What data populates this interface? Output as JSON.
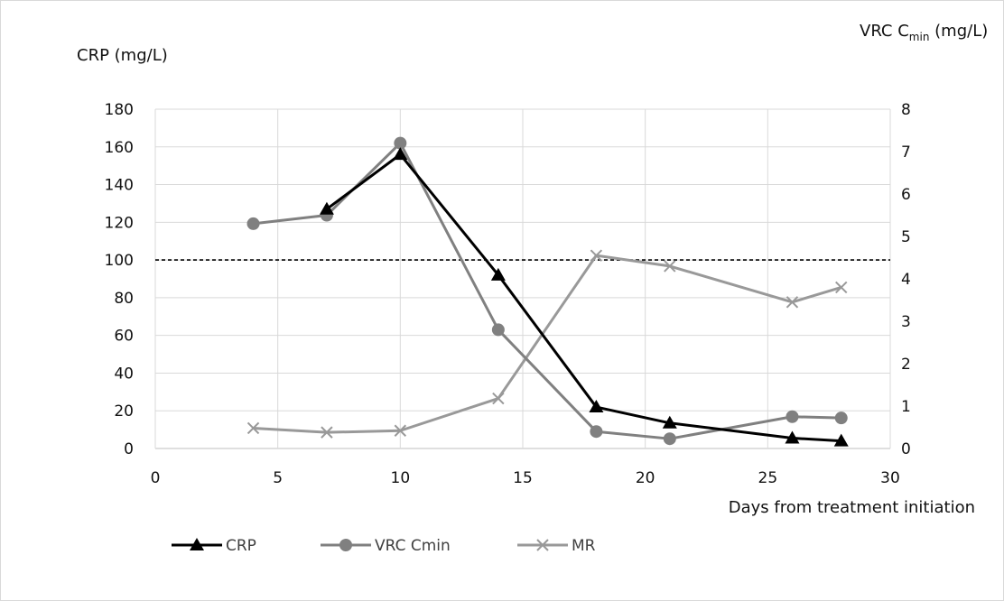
{
  "chart_data": {
    "type": "line",
    "x_axis": {
      "label": "Days from treatment initiation",
      "range": [
        0,
        30
      ],
      "ticks": [
        0,
        5,
        10,
        15,
        20,
        25,
        30
      ],
      "grid": true
    },
    "y_axis_left": {
      "label": "CRP (mg/L)",
      "range": [
        0,
        180
      ],
      "ticks": [
        0,
        20,
        40,
        60,
        80,
        100,
        120,
        140,
        160,
        180
      ],
      "grid": true
    },
    "y_axis_right": {
      "label_main": "VRC C",
      "label_sub": "min",
      "label_unit": " (mg/L)",
      "range": [
        0,
        8
      ],
      "ticks": [
        0,
        1,
        2,
        3,
        4,
        5,
        6,
        7,
        8
      ]
    },
    "series": [
      {
        "name": "CRP",
        "axis": "left",
        "color": "#000000",
        "marker": "triangle",
        "x": [
          7,
          10,
          14,
          18,
          21,
          26,
          28
        ],
        "y": [
          127,
          156,
          92,
          22,
          13.5,
          5.5,
          4
        ]
      },
      {
        "name": "VRC Cmin",
        "axis": "right",
        "color": "#808080",
        "marker": "circle",
        "x": [
          4,
          7,
          10,
          14,
          18,
          21,
          26,
          28
        ],
        "y": [
          5.3,
          5.5,
          7.2,
          2.8,
          0.4,
          0.23,
          0.75,
          0.72
        ]
      },
      {
        "name": "MR",
        "axis": "right",
        "color": "#999999",
        "marker": "x",
        "x": [
          4,
          7,
          10,
          14,
          18,
          21,
          26,
          28
        ],
        "y": [
          0.48,
          0.38,
          0.42,
          1.18,
          4.55,
          4.3,
          3.45,
          3.8
        ]
      }
    ],
    "reference_line": {
      "axis": "left",
      "value": 100,
      "style": "dashed"
    },
    "legend": {
      "position": "bottom-left",
      "entries": [
        "CRP",
        "VRC Cmin",
        "MR"
      ]
    }
  }
}
